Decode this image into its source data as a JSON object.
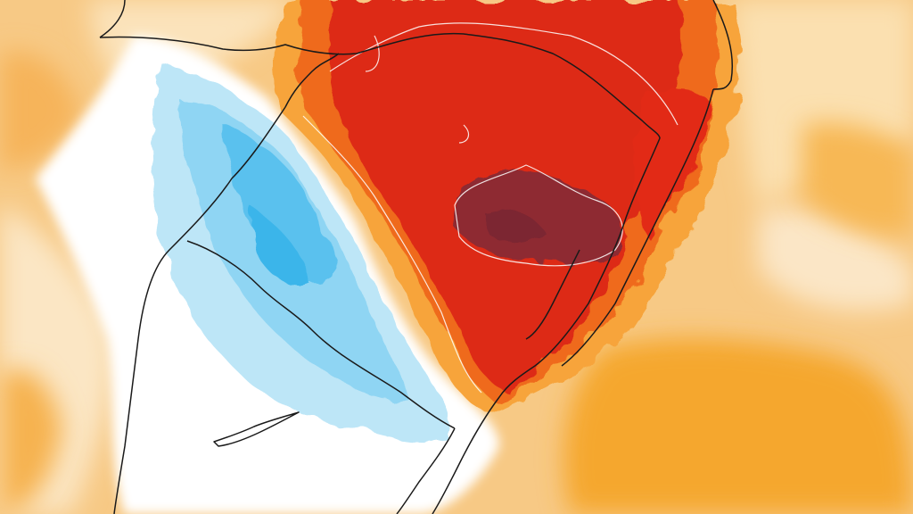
{
  "map": {
    "type": "temperature-anomaly",
    "region": "",
    "colors": {
      "deep_red": "#8e2b31",
      "red": "#d81f16",
      "orange_red": "#ee4e14",
      "orange": "#f5a333",
      "light_orange": "#f8c77c",
      "pale_orange": "#fbe0b0",
      "white": "#ffffff",
      "light_blue": "#bde6f7",
      "blue": "#68c7ef",
      "deep_blue": "#2eb3ea",
      "border_line": "#1a1a1a",
      "contour_line": "#ffffff"
    }
  }
}
